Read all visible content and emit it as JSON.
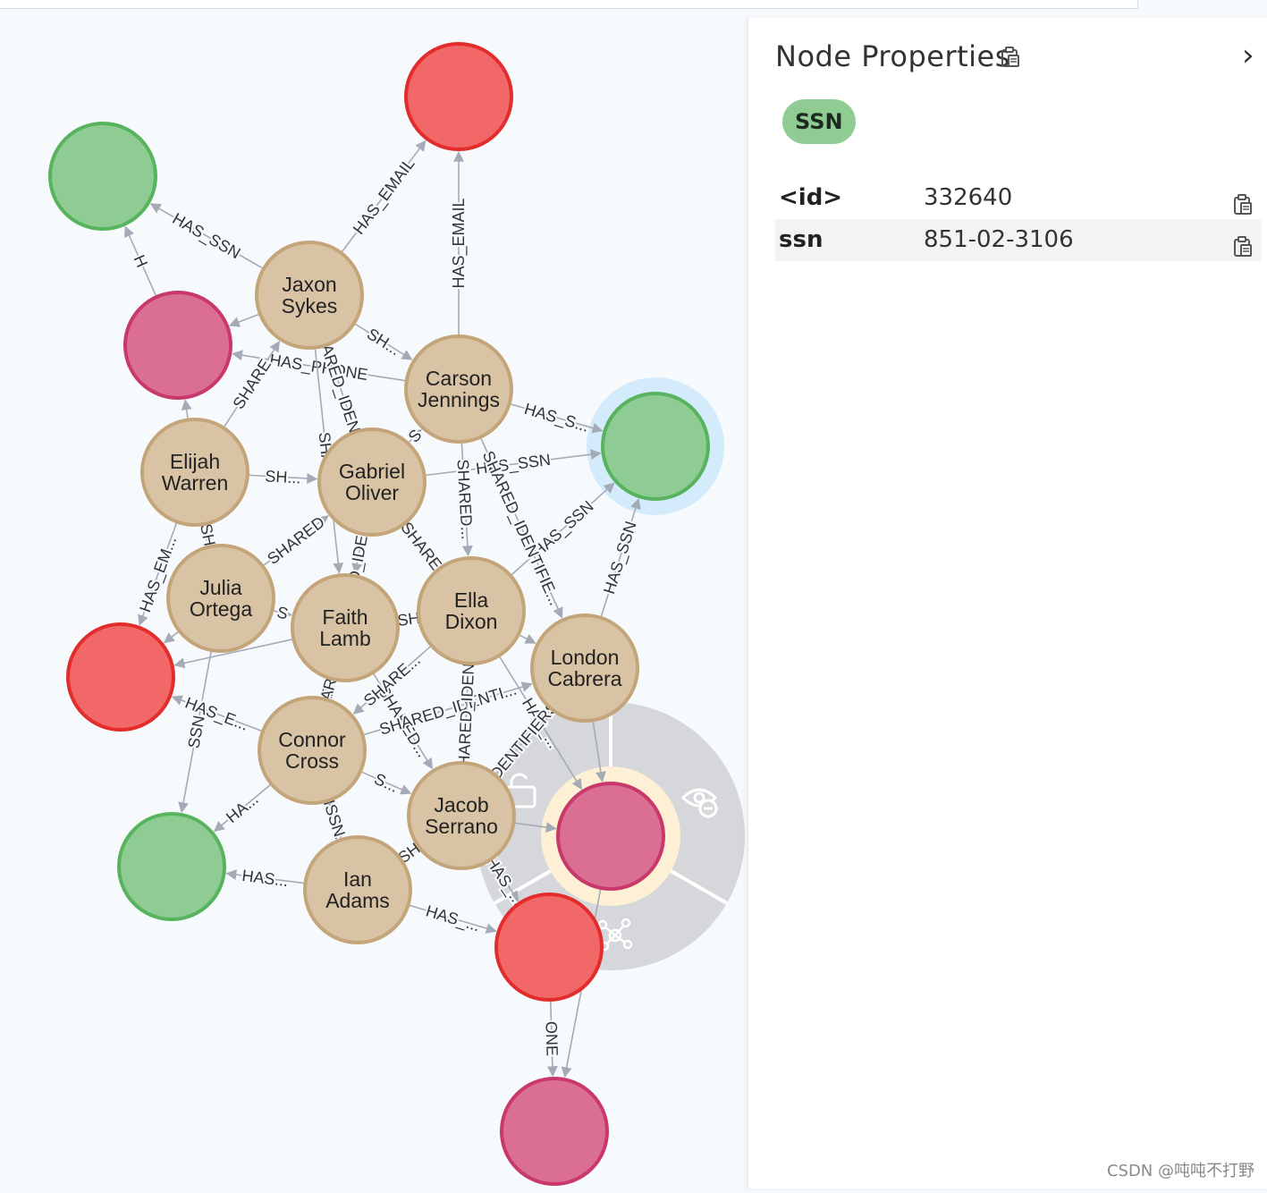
{
  "panel": {
    "title": "Node Properties",
    "collapse_icon": "chevron-right-icon",
    "copy_icon": "clipboard-icon",
    "label_chip": "SSN",
    "properties": [
      {
        "key": "<id>",
        "value": "332640"
      },
      {
        "key": "ssn",
        "value": "851-02-3106"
      }
    ]
  },
  "watermark": "CSDN @吨吨不打野",
  "colors": {
    "person_fill": "#d9c3a5",
    "person_stroke": "#c4a57a",
    "email_fill": "#f26767",
    "email_stroke": "#e32d2d",
    "ssn_fill": "#8ecc93",
    "ssn_stroke": "#58b35f",
    "phone_fill": "#da6f93",
    "phone_stroke": "#c9386a",
    "edge": "#a5abb6",
    "halo": "#d3ebfb",
    "ring_menu": "#d5d7db"
  },
  "graph": {
    "nodes": [
      {
        "id": "jaxon",
        "type": "person",
        "line1": "Jaxon",
        "line2": "Sykes"
      },
      {
        "id": "carson",
        "type": "person",
        "line1": "Carson",
        "line2": "Jennings"
      },
      {
        "id": "elijah",
        "type": "person",
        "line1": "Elijah",
        "line2": "Warren"
      },
      {
        "id": "gabriel",
        "type": "person",
        "line1": "Gabriel",
        "line2": "Oliver"
      },
      {
        "id": "julia",
        "type": "person",
        "line1": "Julia",
        "line2": "Ortega"
      },
      {
        "id": "faith",
        "type": "person",
        "line1": "Faith",
        "line2": "Lamb"
      },
      {
        "id": "ella",
        "type": "person",
        "line1": "Ella",
        "line2": "Dixon"
      },
      {
        "id": "london",
        "type": "person",
        "line1": "London",
        "line2": "Cabrera"
      },
      {
        "id": "connor",
        "type": "person",
        "line1": "Connor",
        "line2": "Cross"
      },
      {
        "id": "jacob",
        "type": "person",
        "line1": "Jacob",
        "line2": "Serrano"
      },
      {
        "id": "ian",
        "type": "person",
        "line1": "Ian",
        "line2": "Adams"
      },
      {
        "id": "email1",
        "type": "email",
        "line1": "",
        "line2": ""
      },
      {
        "id": "email2",
        "type": "email",
        "line1": "",
        "line2": ""
      },
      {
        "id": "email3",
        "type": "email",
        "line1": "",
        "line2": ""
      },
      {
        "id": "ssn1",
        "type": "ssn",
        "line1": "",
        "line2": ""
      },
      {
        "id": "ssn_sel",
        "type": "ssn",
        "line1": "",
        "line2": "",
        "selected": true
      },
      {
        "id": "ssn3",
        "type": "ssn",
        "line1": "",
        "line2": ""
      },
      {
        "id": "phone1",
        "type": "phone",
        "line1": "",
        "line2": ""
      },
      {
        "id": "phone_menu",
        "type": "phone",
        "line1": "",
        "line2": "",
        "menu": true
      },
      {
        "id": "phone3",
        "type": "phone",
        "line1": "",
        "line2": ""
      }
    ],
    "edges": [
      {
        "from": "jaxon",
        "to": "email1",
        "label": "HAS_EMAIL"
      },
      {
        "from": "carson",
        "to": "email1",
        "label": "HAS_EMAIL"
      },
      {
        "from": "jaxon",
        "to": "ssn1",
        "label": "HAS_SSN"
      },
      {
        "from": "jaxon",
        "to": "phone1",
        "label": ""
      },
      {
        "from": "jaxon",
        "to": "carson",
        "label": "SH..."
      },
      {
        "from": "phone1",
        "to": "ssn1",
        "label": "H"
      },
      {
        "from": "carson",
        "to": "ssn_sel",
        "label": "HAS_S..."
      },
      {
        "from": "gabriel",
        "to": "ssn_sel",
        "label": "HAS_SSN"
      },
      {
        "from": "ella",
        "to": "ssn_sel",
        "label": "HAS_SSN"
      },
      {
        "from": "london",
        "to": "ssn_sel",
        "label": "HAS_SSN"
      },
      {
        "from": "carson",
        "to": "phone1",
        "label": "HAS_PHONE"
      },
      {
        "from": "carson",
        "to": "ella",
        "label": "SHARED..."
      },
      {
        "from": "carson",
        "to": "london",
        "label": "SHARED_IDENTIFIE..."
      },
      {
        "from": "jaxon",
        "to": "gabriel",
        "label": "SHARED_IDENT..."
      },
      {
        "from": "jaxon",
        "to": "faith",
        "label": "SHAR..."
      },
      {
        "from": "elijah",
        "to": "phone1",
        "label": ""
      },
      {
        "from": "elijah",
        "to": "gabriel",
        "label": "SH..."
      },
      {
        "from": "elijah",
        "to": "email2",
        "label": "HAS_EM..."
      },
      {
        "from": "elijah",
        "to": "julia",
        "label": "SH"
      },
      {
        "from": "elijah",
        "to": "jaxon",
        "label": "SHARE"
      },
      {
        "from": "gabriel",
        "to": "carson",
        "label": "S"
      },
      {
        "from": "gabriel",
        "to": "faith",
        "label": "SHARED_IDENTIFIE..."
      },
      {
        "from": "gabriel",
        "to": "ella",
        "label": "SHARE"
      },
      {
        "from": "julia",
        "to": "email2",
        "label": ""
      },
      {
        "from": "julia",
        "to": "faith",
        "label": "S"
      },
      {
        "from": "julia",
        "to": "ssn3",
        "label": "SSN"
      },
      {
        "from": "julia",
        "to": "gabriel",
        "label": "SHARED"
      },
      {
        "from": "faith",
        "to": "ella",
        "label": ""
      },
      {
        "from": "faith",
        "to": "email2",
        "label": ""
      },
      {
        "from": "faith",
        "to": "connor",
        "label": "SHARED..."
      },
      {
        "from": "faith",
        "to": "jacob",
        "label": "SHARED..."
      },
      {
        "from": "ella",
        "to": "london",
        "label": ""
      },
      {
        "from": "ella",
        "to": "faith",
        "label": "SH"
      },
      {
        "from": "ella",
        "to": "connor",
        "label": "SHARE..."
      },
      {
        "from": "ella",
        "to": "phone_menu",
        "label": "HAS_..."
      },
      {
        "from": "london",
        "to": "phone_menu",
        "label": ""
      },
      {
        "from": "connor",
        "to": "london",
        "label": "SHARED_IDENTI..."
      },
      {
        "from": "connor",
        "to": "email2",
        "label": "HAS_E..."
      },
      {
        "from": "connor",
        "to": "ssn3",
        "label": "HA..."
      },
      {
        "from": "connor",
        "to": "jacob",
        "label": "S..."
      },
      {
        "from": "connor",
        "to": "ian",
        "label": "IDE..."
      },
      {
        "from": "connor",
        "to": "faith",
        "label": "SHARED"
      },
      {
        "from": "jacob",
        "to": "london",
        "label": "IDENTIFIERS"
      },
      {
        "from": "jacob",
        "to": "ella",
        "label": "SHARED_IDEN..."
      },
      {
        "from": "jacob",
        "to": "phone_menu",
        "label": ""
      },
      {
        "from": "jacob",
        "to": "email3",
        "label": "HAS_..."
      },
      {
        "from": "ian",
        "to": "ssn3",
        "label": "HAS..."
      },
      {
        "from": "ian",
        "to": "jacob",
        "label": "SH"
      },
      {
        "from": "ian",
        "to": "email3",
        "label": "HAS_..."
      },
      {
        "from": "ian",
        "to": "connor",
        "label": "SSN"
      },
      {
        "from": "email3",
        "to": "phone3",
        "label": "ONE"
      },
      {
        "from": "phone_menu",
        "to": "phone3",
        "label": ""
      }
    ]
  },
  "menu_icons": [
    "unlock-icon",
    "hide-icon",
    "expand-icon"
  ]
}
